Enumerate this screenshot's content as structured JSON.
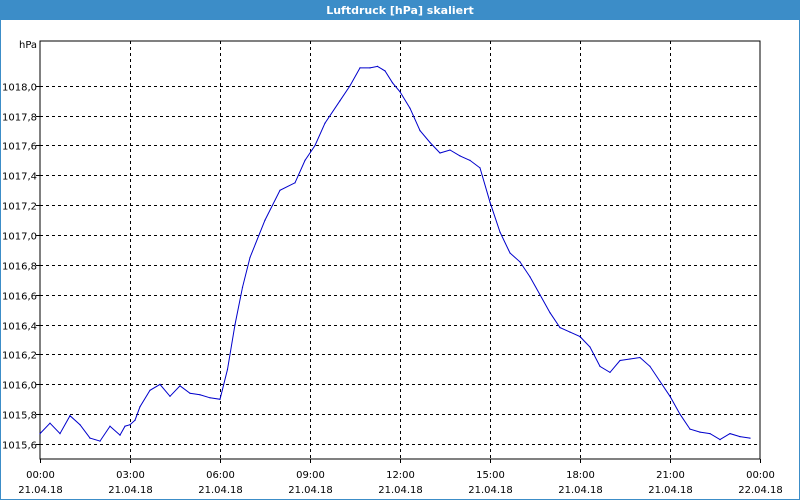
{
  "window": {
    "title": "Luftdruck [hPa] skaliert"
  },
  "colors": {
    "titlebar": "#3c8dc8",
    "line": "#0000cc",
    "grid": "#000000"
  },
  "chart_data": {
    "type": "line",
    "title": "Luftdruck [hPa] skaliert",
    "ylabel": "hPa",
    "xlabel": "",
    "grid": true,
    "legend": "none",
    "ylim": [
      1015.5,
      1018.3
    ],
    "xlim_hours": [
      0,
      24
    ],
    "y_ticks": [
      "1015,6",
      "1015,8",
      "1016,0",
      "1016,2",
      "1016,4",
      "1016,6",
      "1016,8",
      "1017,0",
      "1017,2",
      "1017,4",
      "1017,6",
      "1017,8",
      "1018,0"
    ],
    "y_tick_values": [
      1015.6,
      1015.8,
      1016.0,
      1016.2,
      1016.4,
      1016.6,
      1016.8,
      1017.0,
      1017.2,
      1017.4,
      1017.6,
      1017.8,
      1018.0
    ],
    "x_ticks": [
      {
        "time": "00:00",
        "date": "21.04.18"
      },
      {
        "time": "03:00",
        "date": "21.04.18"
      },
      {
        "time": "06:00",
        "date": "21.04.18"
      },
      {
        "time": "09:00",
        "date": "21.04.18"
      },
      {
        "time": "12:00",
        "date": "21.04.18"
      },
      {
        "time": "15:00",
        "date": "21.04.18"
      },
      {
        "time": "18:00",
        "date": "21.04.18"
      },
      {
        "time": "21:00",
        "date": "21.04.18"
      },
      {
        "time": "00:00",
        "date": "22.04.18"
      }
    ],
    "series": [
      {
        "x": [
          "00:00",
          "00:20",
          "00:40",
          "01:00",
          "01:20",
          "01:40",
          "02:00",
          "02:20",
          "02:40",
          "02:50",
          "03:00",
          "03:10",
          "03:20",
          "03:40",
          "04:00",
          "04:20",
          "04:40",
          "05:00",
          "05:20",
          "05:40",
          "06:00",
          "06:15",
          "06:30",
          "06:45",
          "07:00",
          "07:30",
          "08:00",
          "08:30",
          "08:50",
          "09:10",
          "09:30",
          "10:00",
          "10:20",
          "10:40",
          "11:00",
          "11:15",
          "11:30",
          "11:45",
          "12:00",
          "12:20",
          "12:40",
          "13:00",
          "13:20",
          "13:40",
          "14:00",
          "14:20",
          "14:40",
          "15:00",
          "15:20",
          "15:40",
          "16:00",
          "16:20",
          "16:40",
          "17:00",
          "17:20",
          "17:40",
          "18:00",
          "18:20",
          "18:40",
          "19:00",
          "19:20",
          "19:40",
          "20:00",
          "20:20",
          "20:40",
          "21:00",
          "21:20",
          "21:40",
          "22:00",
          "22:20",
          "22:40",
          "23:00",
          "23:20",
          "23:40"
        ],
        "values": [
          1015.67,
          1015.74,
          1015.67,
          1015.79,
          1015.73,
          1015.64,
          1015.62,
          1015.72,
          1015.66,
          1015.72,
          1015.73,
          1015.76,
          1015.85,
          1015.96,
          1016.0,
          1015.92,
          1015.99,
          1015.94,
          1015.93,
          1015.91,
          1015.9,
          1016.1,
          1016.4,
          1016.65,
          1016.85,
          1017.1,
          1017.3,
          1017.35,
          1017.5,
          1017.6,
          1017.75,
          1017.9,
          1018.0,
          1018.12,
          1018.12,
          1018.13,
          1018.1,
          1018.02,
          1017.96,
          1017.85,
          1017.7,
          1017.62,
          1017.55,
          1017.57,
          1017.53,
          1017.5,
          1017.45,
          1017.22,
          1017.02,
          1016.88,
          1016.82,
          1016.72,
          1016.6,
          1016.48,
          1016.38,
          1016.35,
          1016.32,
          1016.25,
          1016.12,
          1016.08,
          1016.16,
          1016.17,
          1016.18,
          1016.12,
          1016.02,
          1015.92,
          1015.8,
          1015.7,
          1015.68,
          1015.67,
          1015.63,
          1015.67,
          1015.65,
          1015.64
        ]
      }
    ]
  }
}
